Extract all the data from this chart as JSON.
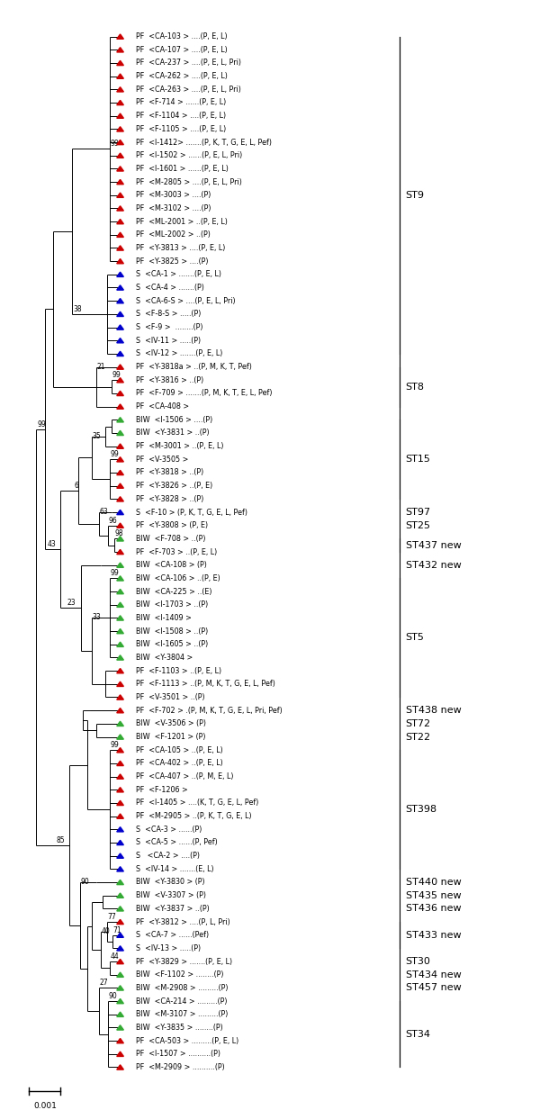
{
  "figure_width": 6.0,
  "figure_height": 12.43,
  "bg_color": "#ffffff",
  "leaves": [
    {
      "id": 0,
      "type": "PF",
      "label": "PF  <CA-103 > ....(P, E, L)"
    },
    {
      "id": 1,
      "type": "PF",
      "label": "PF  <CA-107 > ....(P, E, L)"
    },
    {
      "id": 2,
      "type": "PF",
      "label": "PF  <CA-237 > ....(P, E, L, Pri)"
    },
    {
      "id": 3,
      "type": "PF",
      "label": "PF  <CA-262 > ....(P, E, L)"
    },
    {
      "id": 4,
      "type": "PF",
      "label": "PF  <CA-263 > ....(P, E, L, Pri)"
    },
    {
      "id": 5,
      "type": "PF",
      "label": "PF  <F-714 > ......(P, E, L)"
    },
    {
      "id": 6,
      "type": "PF",
      "label": "PF  <F-1104 > ....(P, E, L)"
    },
    {
      "id": 7,
      "type": "PF",
      "label": "PF  <F-1105 > ....(P, E, L)"
    },
    {
      "id": 8,
      "type": "PF",
      "label": "PF  <I-1412> .......(P, K, T, G, E, L, Pef)"
    },
    {
      "id": 9,
      "type": "PF",
      "label": "PF  <I-1502 > ......(P, E, L, Pri)"
    },
    {
      "id": 10,
      "type": "PF",
      "label": "PF  <I-1601 > ......(P, E, L)"
    },
    {
      "id": 11,
      "type": "PF",
      "label": "PF  <M-2805 > ....(P, E, L, Pri)"
    },
    {
      "id": 12,
      "type": "PF",
      "label": "PF  <M-3003 > ....(P)"
    },
    {
      "id": 13,
      "type": "PF",
      "label": "PF  <M-3102 > ....(P)"
    },
    {
      "id": 14,
      "type": "PF",
      "label": "PF  <ML-2001 > ..(P, E, L)"
    },
    {
      "id": 15,
      "type": "PF",
      "label": "PF  <ML-2002 > ..(P)"
    },
    {
      "id": 16,
      "type": "PF",
      "label": "PF  <Y-3813 > ....(P, E, L)"
    },
    {
      "id": 17,
      "type": "PF",
      "label": "PF  <Y-3825 > ....(P)"
    },
    {
      "id": 18,
      "type": "S",
      "label": "S  <CA-1 > .......(P, E, L)"
    },
    {
      "id": 19,
      "type": "S",
      "label": "S  <CA-4 > .......(P)"
    },
    {
      "id": 20,
      "type": "S",
      "label": "S  <CA-6-S > ....(P, E, L, Pri)"
    },
    {
      "id": 21,
      "type": "S",
      "label": "S  <F-8-S > .....(P)"
    },
    {
      "id": 22,
      "type": "S",
      "label": "S  <F-9 >  ........(P)"
    },
    {
      "id": 23,
      "type": "S",
      "label": "S  <IV-11 > .....(P)"
    },
    {
      "id": 24,
      "type": "S",
      "label": "S  <IV-12 > .......(P, E, L)"
    },
    {
      "id": 25,
      "type": "PF",
      "label": "PF  <Y-3818a > ..(P, M, K, T, Pef)"
    },
    {
      "id": 26,
      "type": "PF",
      "label": "PF  <Y-3816 > ..(P)"
    },
    {
      "id": 27,
      "type": "PF",
      "label": "PF  <F-709 > .......(P, M, K, T, E, L, Pef)"
    },
    {
      "id": 28,
      "type": "PF",
      "label": "PF  <CA-408 >"
    },
    {
      "id": 29,
      "type": "BIW",
      "label": "BIW  <I-1506 > ....(P)"
    },
    {
      "id": 30,
      "type": "BIW",
      "label": "BIW  <Y-3831 > ..(P)"
    },
    {
      "id": 31,
      "type": "PF",
      "label": "PF  <M-3001 > ..(P, E, L)"
    },
    {
      "id": 32,
      "type": "PF",
      "label": "PF  <V-3505 >"
    },
    {
      "id": 33,
      "type": "PF",
      "label": "PF  <Y-3818 > ..(P)"
    },
    {
      "id": 34,
      "type": "PF",
      "label": "PF  <Y-3826 > ..(P, E)"
    },
    {
      "id": 35,
      "type": "PF",
      "label": "PF  <Y-3828 > ..(P)"
    },
    {
      "id": 36,
      "type": "S",
      "label": "S  <F-10 > (P, K, T, G, E, L, Pef)"
    },
    {
      "id": 37,
      "type": "PF",
      "label": "PF  <Y-3808 > (P, E)"
    },
    {
      "id": 38,
      "type": "BIW",
      "label": "BIW  <F-708 > ..(P)"
    },
    {
      "id": 39,
      "type": "PF",
      "label": "PF  <F-703 > ..(P, E, L)"
    },
    {
      "id": 40,
      "type": "BIW",
      "label": "BIW  <CA-108 > (P)"
    },
    {
      "id": 41,
      "type": "BIW",
      "label": "BIW  <CA-106 > ..(P, E)"
    },
    {
      "id": 42,
      "type": "BIW",
      "label": "BIW  <CA-225 > ..(E)"
    },
    {
      "id": 43,
      "type": "BIW",
      "label": "BIW  <I-1703 > ..(P)"
    },
    {
      "id": 44,
      "type": "BIW",
      "label": "BIW  <I-1409 >"
    },
    {
      "id": 45,
      "type": "BIW",
      "label": "BIW  <I-1508 > ..(P)"
    },
    {
      "id": 46,
      "type": "BIW",
      "label": "BIW  <I-1605 > ..(P)"
    },
    {
      "id": 47,
      "type": "BIW",
      "label": "BIW  <Y-3804 >"
    },
    {
      "id": 48,
      "type": "PF",
      "label": "PF  <F-1103 > ..(P, E, L)"
    },
    {
      "id": 49,
      "type": "PF",
      "label": "PF  <F-1113 > ..(P, M, K, T, G, E, L, Pef)"
    },
    {
      "id": 50,
      "type": "PF",
      "label": "PF  <V-3501 > ..(P)"
    },
    {
      "id": 51,
      "type": "PF",
      "label": "PF  <F-702 > .(P, M, K, T, G, E, L, Pri, Pef)"
    },
    {
      "id": 52,
      "type": "BIW",
      "label": "BIW  <V-3506 > (P)"
    },
    {
      "id": 53,
      "type": "BIW",
      "label": "BIW  <F-1201 > (P)"
    },
    {
      "id": 54,
      "type": "PF",
      "label": "PF  <CA-105 > ..(P, E, L)"
    },
    {
      "id": 55,
      "type": "PF",
      "label": "PF  <CA-402 > ..(P, E, L)"
    },
    {
      "id": 56,
      "type": "PF",
      "label": "PF  <CA-407 > ..(P, M, E, L)"
    },
    {
      "id": 57,
      "type": "PF",
      "label": "PF  <F-1206 >"
    },
    {
      "id": 58,
      "type": "PF",
      "label": "PF  <I-1405 > ....(K, T, G, E, L, Pef)"
    },
    {
      "id": 59,
      "type": "PF",
      "label": "PF  <M-2905 > ..(P, K, T, G, E, L)"
    },
    {
      "id": 60,
      "type": "S",
      "label": "S  <CA-3 > ......(P)"
    },
    {
      "id": 61,
      "type": "S",
      "label": "S  <CA-5 > ......(P, Pef)"
    },
    {
      "id": 62,
      "type": "S",
      "label": "S   <CA-2 > ....(P)"
    },
    {
      "id": 63,
      "type": "S",
      "label": "S  <IV-14 > .......(E, L)"
    },
    {
      "id": 64,
      "type": "BIW",
      "label": "BIW  <Y-3830 > (P)"
    },
    {
      "id": 65,
      "type": "BIW",
      "label": "BIW  <V-3307 > (P)"
    },
    {
      "id": 66,
      "type": "BIW",
      "label": "BIW  <Y-3837 > ..(P)"
    },
    {
      "id": 67,
      "type": "PF",
      "label": "PF  <Y-3812 > ....(P, L, Pri)"
    },
    {
      "id": 68,
      "type": "S",
      "label": "S  <CA-7 > ......(Pef)"
    },
    {
      "id": 69,
      "type": "S",
      "label": "S  <IV-13 > .....(P)"
    },
    {
      "id": 70,
      "type": "PF",
      "label": "PF  <Y-3829 > .......(P, E, L)"
    },
    {
      "id": 71,
      "type": "BIW",
      "label": "BIW  <F-1102 > ........(P)"
    },
    {
      "id": 72,
      "type": "BIW",
      "label": "BIW  <M-2908 > .........(P)"
    },
    {
      "id": 73,
      "type": "BIW",
      "label": "BIW  <CA-214 > .........(P)"
    },
    {
      "id": 74,
      "type": "BIW",
      "label": "BIW  <M-3107 > .........(P)"
    },
    {
      "id": 75,
      "type": "BIW",
      "label": "BIW  <Y-3835 > ........(P)"
    },
    {
      "id": 76,
      "type": "PF",
      "label": "PF  <CA-503 > .........(P, E, L)"
    },
    {
      "id": 77,
      "type": "PF",
      "label": "PF  <I-1507 > ..........(P)"
    },
    {
      "id": 78,
      "type": "PF",
      "label": "PF  <M-2909 > ..........(P)"
    }
  ],
  "colors": {
    "PF": "#cc0000",
    "BIW": "#33aa33",
    "S": "#0000cc"
  }
}
